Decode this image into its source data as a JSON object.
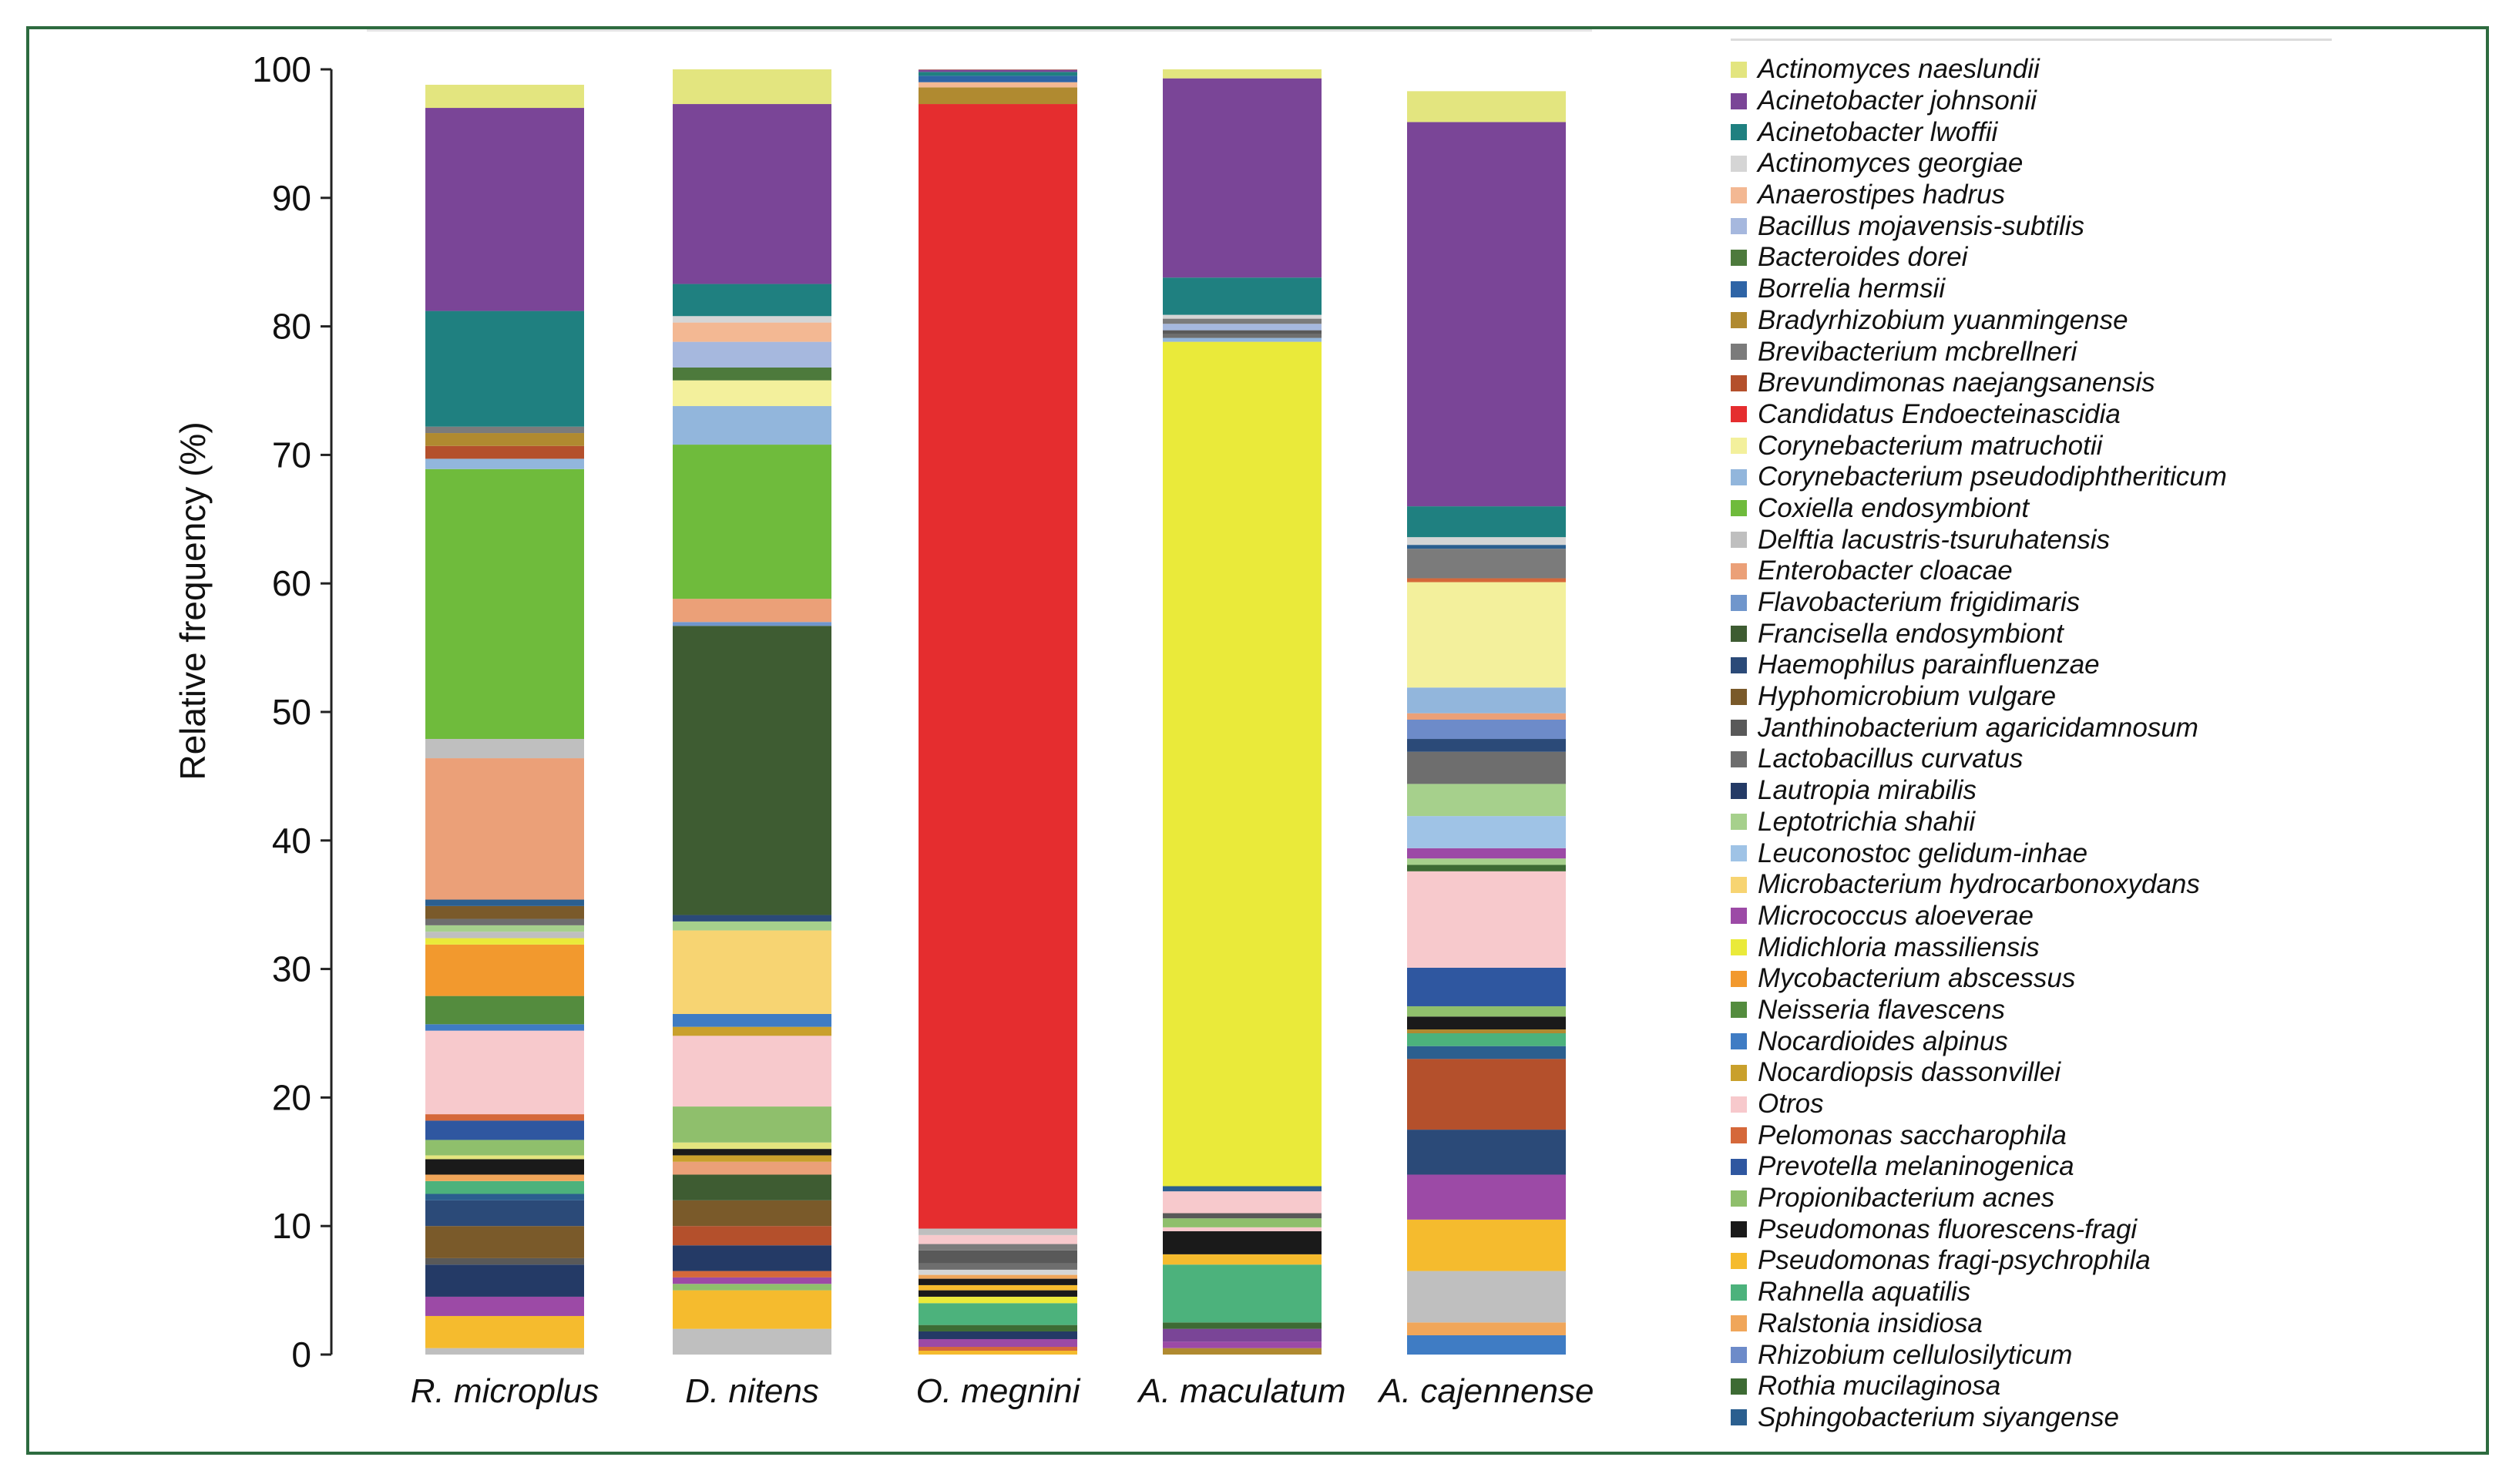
{
  "chart_data": {
    "type": "bar",
    "stacked": true,
    "ylabel": "Relative frequency (%)",
    "ylim": [
      0,
      100
    ],
    "yticks": [
      0,
      10,
      20,
      30,
      40,
      50,
      60,
      70,
      80,
      90,
      100
    ],
    "categories": [
      "R. microplus",
      "D. nitens",
      "O. megnini",
      "A. maculatum",
      "A. cajennense"
    ],
    "taxa": [
      {
        "name": "Actinomyces naeslundii",
        "color": "#e3e57f"
      },
      {
        "name": "Acinetobacter johnsonii",
        "color": "#7a4597"
      },
      {
        "name": "Acinetobacter lwoffii",
        "color": "#1f8080"
      },
      {
        "name": "Actinomyces georgiae",
        "color": "#d5d5d5"
      },
      {
        "name": "Anaerostipes hadrus",
        "color": "#f3b893"
      },
      {
        "name": "Bacillus mojavensis-subtilis",
        "color": "#a6b8de"
      },
      {
        "name": "Bacteroides dorei",
        "color": "#4d7a3c"
      },
      {
        "name": "Borrelia hermsii",
        "color": "#2e64a6"
      },
      {
        "name": "Bradyrhizobium yuanmingense",
        "color": "#b08a30"
      },
      {
        "name": "Brevibacterium mcbrellneri",
        "color": "#7b7b7b"
      },
      {
        "name": "Brevundimonas naejangsanensis",
        "color": "#b4502c"
      },
      {
        "name": "Candidatus Endoecteinascidia",
        "color": "#e52d2f"
      },
      {
        "name": "Corynebacterium matruchotii",
        "color": "#f3f09c"
      },
      {
        "name": "Corynebacterium pseudodiphtheriticum",
        "color": "#92b6dc"
      },
      {
        "name": "Coxiella endosymbiont",
        "color": "#6fbb3c"
      },
      {
        "name": "Delftia lacustris-tsuruhatensis",
        "color": "#bfbfbf"
      },
      {
        "name": "Enterobacter cloacae",
        "color": "#eba078"
      },
      {
        "name": "Flavobacterium frigidimaris",
        "color": "#7096cc"
      },
      {
        "name": "Francisella endosymbiont",
        "color": "#3e5c32"
      },
      {
        "name": "Haemophilus parainfluenzae",
        "color": "#2b4a78"
      },
      {
        "name": "Hyphomicrobium vulgare",
        "color": "#7a5a2a"
      },
      {
        "name": "Janthinobacterium agaricidamnosum",
        "color": "#595959"
      },
      {
        "name": "Lactobacillus curvatus",
        "color": "#6e6e6e"
      },
      {
        "name": "Lautropia mirabilis",
        "color": "#243a66"
      },
      {
        "name": "Leptotrichia shahii",
        "color": "#a6d08c"
      },
      {
        "name": "Leuconostoc gelidum-inhae",
        "color": "#9fc3e6"
      },
      {
        "name": "Microbacterium hydrocarbonoxydans",
        "color": "#f7d472"
      },
      {
        "name": "Micrococcus aloeverae",
        "color": "#9c4aa6"
      },
      {
        "name": "Midichloria massiliensis",
        "color": "#eaea3a"
      },
      {
        "name": "Mycobacterium abscessus",
        "color": "#f2992e"
      },
      {
        "name": "Neisseria flavescens",
        "color": "#548c3e"
      },
      {
        "name": "Nocardioides alpinus",
        "color": "#3f7cc4"
      },
      {
        "name": "Nocardiopsis dassonvillei",
        "color": "#c9a02c"
      },
      {
        "name": "Otros",
        "color": "#f7c9cc"
      },
      {
        "name": "Pelomonas saccharophila",
        "color": "#d5683a"
      },
      {
        "name": "Prevotella melaninogenica",
        "color": "#2f57a0"
      },
      {
        "name": "Propionibacterium acnes",
        "color": "#8fbf6c"
      },
      {
        "name": "Pseudomonas fluorescens-fragi",
        "color": "#1a1a1a"
      },
      {
        "name": "Pseudomonas fragi-psychrophila",
        "color": "#f5bb2e"
      },
      {
        "name": "Rahnella aquatilis",
        "color": "#4cb27c"
      },
      {
        "name": "Ralstonia insidiosa",
        "color": "#f0a65a"
      },
      {
        "name": "Rhizobium cellulosilyticum",
        "color": "#6d8bc9"
      },
      {
        "name": "Rothia mucilaginosa",
        "color": "#3d6b34"
      },
      {
        "name": "Sphingobacterium siyangense",
        "color": "#2b5f8f"
      }
    ],
    "stacks": [
      {
        "category": "R. microplus",
        "segments": [
          {
            "taxon": "Delftia lacustris-tsuruhatensis",
            "value": 0.5
          },
          {
            "taxon": "Pseudomonas fragi-psychrophila",
            "value": 2.5
          },
          {
            "taxon": "Micrococcus aloeverae",
            "value": 1.5
          },
          {
            "taxon": "Lautropia mirabilis",
            "value": 2.5
          },
          {
            "taxon": "Janthinobacterium agaricidamnosum",
            "value": 0.5
          },
          {
            "taxon": "Hyphomicrobium vulgare",
            "value": 2.5
          },
          {
            "taxon": "Haemophilus parainfluenzae",
            "value": 2.0
          },
          {
            "taxon": "Sphingobacterium siyangense",
            "value": 0.5
          },
          {
            "taxon": "Rahnella aquatilis",
            "value": 1.0
          },
          {
            "taxon": "Ralstonia insidiosa",
            "value": 0.5
          },
          {
            "taxon": "Pseudomonas fluorescens-fragi",
            "value": 1.2
          },
          {
            "taxon": "Actinomyces naeslundii",
            "value": 0.3
          },
          {
            "taxon": "Propionibacterium acnes",
            "value": 1.2
          },
          {
            "taxon": "Prevotella melaninogenica",
            "value": 1.5
          },
          {
            "taxon": "Pelomonas saccharophila",
            "value": 0.5
          },
          {
            "taxon": "Otros",
            "value": 6.5
          },
          {
            "taxon": "Nocardioides alpinus",
            "value": 0.5
          },
          {
            "taxon": "Neisseria flavescens",
            "value": 2.2
          },
          {
            "taxon": "Mycobacterium abscessus",
            "value": 4.0
          },
          {
            "taxon": "Midichloria massiliensis",
            "value": 0.5
          },
          {
            "taxon": "Delftia lacustris-tsuruhatensis",
            "value": 0.5
          },
          {
            "taxon": "Leptotrichia shahii",
            "value": 0.5
          },
          {
            "taxon": "Lactobacillus curvatus",
            "value": 0.5
          },
          {
            "taxon": "Hyphomicrobium vulgare",
            "value": 1.0
          },
          {
            "taxon": "Sphingobacterium siyangense",
            "value": 0.5
          },
          {
            "taxon": "Enterobacter cloacae",
            "value": 11.0
          },
          {
            "taxon": "Delftia lacustris-tsuruhatensis",
            "value": 1.5
          },
          {
            "taxon": "Coxiella endosymbiont",
            "value": 21.0
          },
          {
            "taxon": "Corynebacterium pseudodiphtheriticum",
            "value": 0.8
          },
          {
            "taxon": "Brevundimonas naejangsanensis",
            "value": 1.0
          },
          {
            "taxon": "Bradyrhizobium yuanmingense",
            "value": 1.0
          },
          {
            "taxon": "Brevibacterium mcbrellneri",
            "value": 0.5
          },
          {
            "taxon": "Acinetobacter lwoffii",
            "value": 9.0
          },
          {
            "taxon": "Acinetobacter johnsonii",
            "value": 15.8
          },
          {
            "taxon": "Actinomyces naeslundii",
            "value": 1.8
          }
        ]
      },
      {
        "category": "D. nitens",
        "segments": [
          {
            "taxon": "Delftia lacustris-tsuruhatensis",
            "value": 2.0
          },
          {
            "taxon": "Pseudomonas fragi-psychrophila",
            "value": 3.0
          },
          {
            "taxon": "Propionibacterium acnes",
            "value": 0.5
          },
          {
            "taxon": "Micrococcus aloeverae",
            "value": 0.5
          },
          {
            "taxon": "Pelomonas saccharophila",
            "value": 0.5
          },
          {
            "taxon": "Lautropia mirabilis",
            "value": 2.0
          },
          {
            "taxon": "Brevundimonas naejangsanensis",
            "value": 1.5
          },
          {
            "taxon": "Hyphomicrobium vulgare",
            "value": 2.0
          },
          {
            "taxon": "Francisella endosymbiont",
            "value": 2.0
          },
          {
            "taxon": "Enterobacter cloacae",
            "value": 1.0
          },
          {
            "taxon": "Nocardiopsis dassonvillei",
            "value": 0.5
          },
          {
            "taxon": "Pseudomonas fluorescens-fragi",
            "value": 0.5
          },
          {
            "taxon": "Actinomyces naeslundii",
            "value": 0.5
          },
          {
            "taxon": "Propionibacterium acnes",
            "value": 2.8
          },
          {
            "taxon": "Otros",
            "value": 5.5
          },
          {
            "taxon": "Nocardiopsis dassonvillei",
            "value": 0.7
          },
          {
            "taxon": "Nocardioides alpinus",
            "value": 1.0
          },
          {
            "taxon": "Microbacterium hydrocarbonoxydans",
            "value": 6.5
          },
          {
            "taxon": "Leptotrichia shahii",
            "value": 0.7
          },
          {
            "taxon": "Haemophilus parainfluenzae",
            "value": 0.5
          },
          {
            "taxon": "Francisella endosymbiont",
            "value": 22.5
          },
          {
            "taxon": "Flavobacterium frigidimaris",
            "value": 0.3
          },
          {
            "taxon": "Enterobacter cloacae",
            "value": 1.8
          },
          {
            "taxon": "Coxiella endosymbiont",
            "value": 12.0
          },
          {
            "taxon": "Corynebacterium pseudodiphtheriticum",
            "value": 3.0
          },
          {
            "taxon": "Corynebacterium matruchotii",
            "value": 2.0
          },
          {
            "taxon": "Bacteroides dorei",
            "value": 1.0
          },
          {
            "taxon": "Bacillus mojavensis-subtilis",
            "value": 2.0
          },
          {
            "taxon": "Anaerostipes hadrus",
            "value": 1.5
          },
          {
            "taxon": "Actinomyces georgiae",
            "value": 0.5
          },
          {
            "taxon": "Acinetobacter lwoffii",
            "value": 2.5
          },
          {
            "taxon": "Acinetobacter johnsonii",
            "value": 14.0
          },
          {
            "taxon": "Actinomyces naeslundii",
            "value": 2.7
          }
        ]
      },
      {
        "category": "O. megnini",
        "segments": [
          {
            "taxon": "Pseudomonas fragi-psychrophila",
            "value": 0.3
          },
          {
            "taxon": "Pelomonas saccharophila",
            "value": 0.3
          },
          {
            "taxon": "Micrococcus aloeverae",
            "value": 0.6
          },
          {
            "taxon": "Lautropia mirabilis",
            "value": 0.6
          },
          {
            "taxon": "Rothia mucilaginosa",
            "value": 0.5
          },
          {
            "taxon": "Rahnella aquatilis",
            "value": 1.7
          },
          {
            "taxon": "Midichloria massiliensis",
            "value": 0.5
          },
          {
            "taxon": "Pseudomonas fluorescens-fragi",
            "value": 0.5
          },
          {
            "taxon": "Pseudomonas fragi-psychrophila",
            "value": 0.4
          },
          {
            "taxon": "Pseudomonas fluorescens-fragi",
            "value": 0.5
          },
          {
            "taxon": "Ralstonia insidiosa",
            "value": 0.3
          },
          {
            "taxon": "Actinomyces georgiae",
            "value": 0.4
          },
          {
            "taxon": "Lactobacillus curvatus",
            "value": 0.5
          },
          {
            "taxon": "Janthinobacterium agaricidamnosum",
            "value": 1.0
          },
          {
            "taxon": "Brevibacterium mcbrellneri",
            "value": 0.5
          },
          {
            "taxon": "Otros",
            "value": 0.7
          },
          {
            "taxon": "Delftia lacustris-tsuruhatensis",
            "value": 0.5
          },
          {
            "taxon": "Candidatus Endoecteinascidia",
            "value": 87.5
          },
          {
            "taxon": "Bradyrhizobium yuanmingense",
            "value": 1.3
          },
          {
            "taxon": "Anaerostipes hadrus",
            "value": 0.4
          },
          {
            "taxon": "Borrelia hermsii",
            "value": 0.5
          },
          {
            "taxon": "Acinetobacter lwoffii",
            "value": 0.3
          },
          {
            "taxon": "Acinetobacter johnsonii",
            "value": 0.3
          },
          {
            "taxon": "Ralstonia insidiosa",
            "value": 0.2
          }
        ]
      },
      {
        "category": "A. maculatum",
        "segments": [
          {
            "taxon": "Bradyrhizobium yuanmingense",
            "value": 0.5
          },
          {
            "taxon": "Micrococcus aloeverae",
            "value": 0.5
          },
          {
            "taxon": "Acinetobacter johnsonii",
            "value": 1.0
          },
          {
            "taxon": "Rothia mucilaginosa",
            "value": 0.5
          },
          {
            "taxon": "Rahnella aquatilis",
            "value": 4.5
          },
          {
            "taxon": "Pseudomonas fragi-psychrophila",
            "value": 0.8
          },
          {
            "taxon": "Pseudomonas fluorescens-fragi",
            "value": 1.8
          },
          {
            "taxon": "Otros",
            "value": 0.3
          },
          {
            "taxon": "Propionibacterium acnes",
            "value": 0.7
          },
          {
            "taxon": "Janthinobacterium agaricidamnosum",
            "value": 0.4
          },
          {
            "taxon": "Otros",
            "value": 1.7
          },
          {
            "taxon": "Sphingobacterium siyangense",
            "value": 0.4
          },
          {
            "taxon": "Midichloria massiliensis",
            "value": 65.7
          },
          {
            "taxon": "Corynebacterium pseudodiphtheriticum",
            "value": 0.3
          },
          {
            "taxon": "Lactobacillus curvatus",
            "value": 0.3
          },
          {
            "taxon": "Janthinobacterium agaricidamnosum",
            "value": 0.3
          },
          {
            "taxon": "Bacillus mojavensis-subtilis",
            "value": 0.5
          },
          {
            "taxon": "Brevibacterium mcbrellneri",
            "value": 0.4
          },
          {
            "taxon": "Actinomyces georgiae",
            "value": 0.3
          },
          {
            "taxon": "Acinetobacter lwoffii",
            "value": 2.9
          },
          {
            "taxon": "Acinetobacter johnsonii",
            "value": 15.5
          },
          {
            "taxon": "Actinomyces naeslundii",
            "value": 0.7
          }
        ]
      },
      {
        "category": "A. cajennense",
        "segments": [
          {
            "taxon": "Nocardioides alpinus",
            "value": 1.5
          },
          {
            "taxon": "Ralstonia insidiosa",
            "value": 1.0
          },
          {
            "taxon": "Delftia lacustris-tsuruhatensis",
            "value": 4.0
          },
          {
            "taxon": "Pseudomonas fragi-psychrophila",
            "value": 4.0
          },
          {
            "taxon": "Micrococcus aloeverae",
            "value": 3.5
          },
          {
            "taxon": "Haemophilus parainfluenzae",
            "value": 3.5
          },
          {
            "taxon": "Brevundimonas naejangsanensis",
            "value": 5.5
          },
          {
            "taxon": "Sphingobacterium siyangense",
            "value": 1.0
          },
          {
            "taxon": "Rahnella aquatilis",
            "value": 1.0
          },
          {
            "taxon": "Bradyrhizobium yuanmingense",
            "value": 0.3
          },
          {
            "taxon": "Pseudomonas fluorescens-fragi",
            "value": 1.0
          },
          {
            "taxon": "Propionibacterium acnes",
            "value": 0.8
          },
          {
            "taxon": "Prevotella melaninogenica",
            "value": 3.0
          },
          {
            "taxon": "Otros",
            "value": 7.5
          },
          {
            "taxon": "Rothia mucilaginosa",
            "value": 0.5
          },
          {
            "taxon": "Leptotrichia shahii",
            "value": 0.5
          },
          {
            "taxon": "Micrococcus aloeverae",
            "value": 0.8
          },
          {
            "taxon": "Leuconostoc gelidum-inhae",
            "value": 2.5
          },
          {
            "taxon": "Leptotrichia shahii",
            "value": 2.5
          },
          {
            "taxon": "Lactobacillus curvatus",
            "value": 2.5
          },
          {
            "taxon": "Haemophilus parainfluenzae",
            "value": 1.0
          },
          {
            "taxon": "Rhizobium cellulosilyticum",
            "value": 1.5
          },
          {
            "taxon": "Enterobacter cloacae",
            "value": 0.5
          },
          {
            "taxon": "Corynebacterium pseudodiphtheriticum",
            "value": 2.0
          },
          {
            "taxon": "Corynebacterium matruchotii",
            "value": 8.2
          },
          {
            "taxon": "Pelomonas saccharophila",
            "value": 0.3
          },
          {
            "taxon": "Brevibacterium mcbrellneri",
            "value": 2.3
          },
          {
            "taxon": "Sphingobacterium siyangense",
            "value": 0.3
          },
          {
            "taxon": "Actinomyces georgiae",
            "value": 0.6
          },
          {
            "taxon": "Acinetobacter lwoffii",
            "value": 2.4
          },
          {
            "taxon": "Acinetobacter johnsonii",
            "value": 29.9
          },
          {
            "taxon": "Actinomyces naeslundii",
            "value": 2.4
          }
        ]
      }
    ]
  }
}
